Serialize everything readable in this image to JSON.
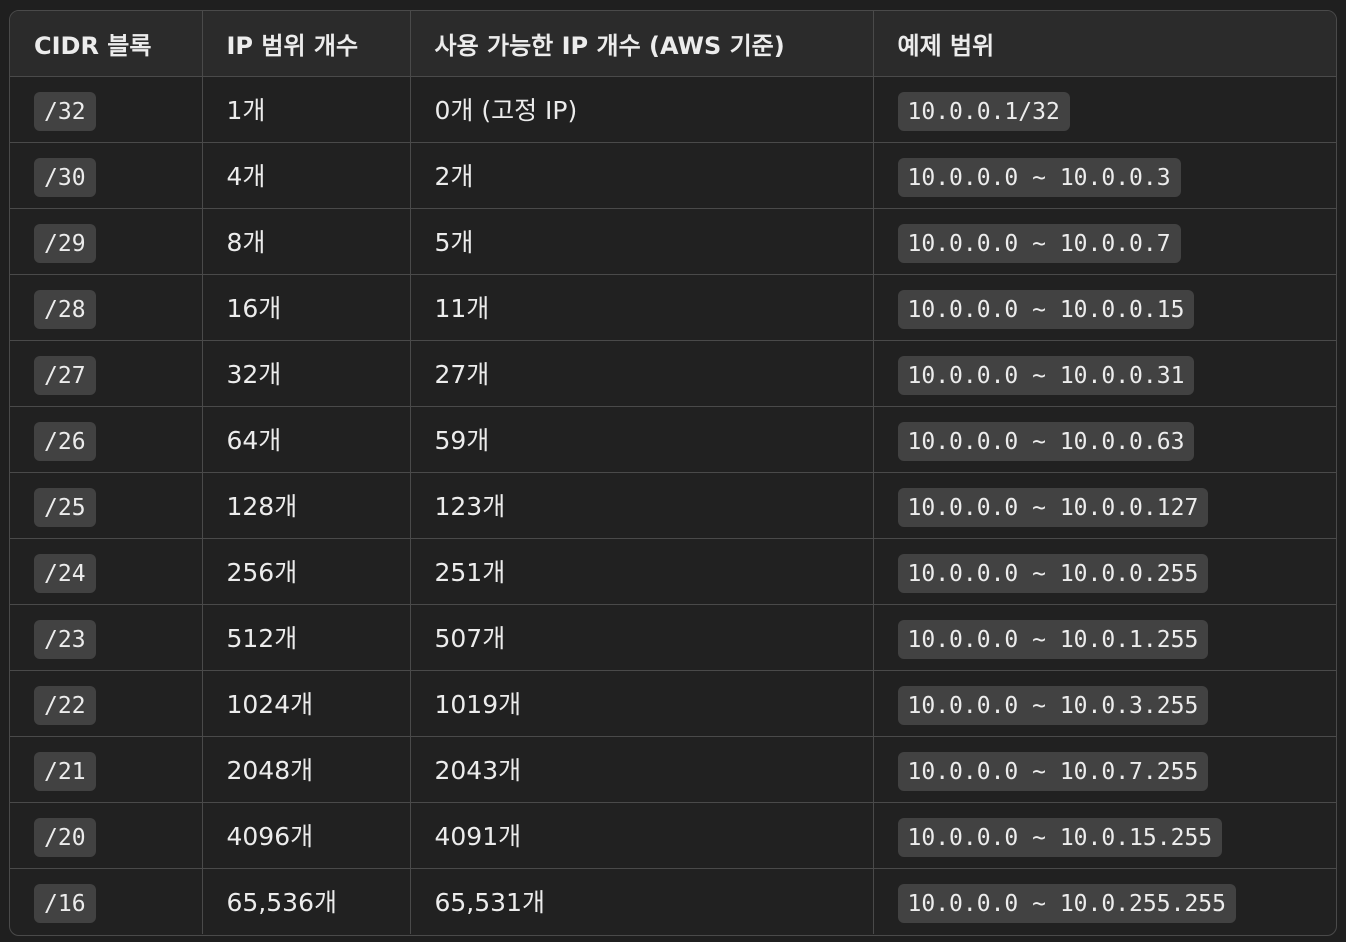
{
  "table": {
    "headers": [
      "CIDR 블록",
      "IP 범위 개수",
      "사용 가능한 IP 개수 (AWS 기준)",
      "예제 범위"
    ],
    "rows": [
      {
        "cidr": "/32",
        "range_count": "1개",
        "usable_count": "0개 (고정 IP)",
        "example": "10.0.0.1/32"
      },
      {
        "cidr": "/30",
        "range_count": "4개",
        "usable_count": "2개",
        "example": "10.0.0.0 ~ 10.0.0.3"
      },
      {
        "cidr": "/29",
        "range_count": "8개",
        "usable_count": "5개",
        "example": "10.0.0.0 ~ 10.0.0.7"
      },
      {
        "cidr": "/28",
        "range_count": "16개",
        "usable_count": "11개",
        "example": "10.0.0.0 ~ 10.0.0.15"
      },
      {
        "cidr": "/27",
        "range_count": "32개",
        "usable_count": "27개",
        "example": "10.0.0.0 ~ 10.0.0.31"
      },
      {
        "cidr": "/26",
        "range_count": "64개",
        "usable_count": "59개",
        "example": "10.0.0.0 ~ 10.0.0.63"
      },
      {
        "cidr": "/25",
        "range_count": "128개",
        "usable_count": "123개",
        "example": "10.0.0.0 ~ 10.0.0.127"
      },
      {
        "cidr": "/24",
        "range_count": "256개",
        "usable_count": "251개",
        "example": "10.0.0.0 ~ 10.0.0.255"
      },
      {
        "cidr": "/23",
        "range_count": "512개",
        "usable_count": "507개",
        "example": "10.0.0.0 ~ 10.0.1.255"
      },
      {
        "cidr": "/22",
        "range_count": "1024개",
        "usable_count": "1019개",
        "example": "10.0.0.0 ~ 10.0.3.255"
      },
      {
        "cidr": "/21",
        "range_count": "2048개",
        "usable_count": "2043개",
        "example": "10.0.0.0 ~ 10.0.7.255"
      },
      {
        "cidr": "/20",
        "range_count": "4096개",
        "usable_count": "4091개",
        "example": "10.0.0.0 ~ 10.0.15.255"
      },
      {
        "cidr": "/16",
        "range_count": "65,536개",
        "usable_count": "65,531개",
        "example": "10.0.0.0 ~ 10.0.255.255"
      }
    ]
  },
  "colors": {
    "background": "#1f1f1f",
    "header_background": "#2b2b2b",
    "border": "#4a4a4a",
    "code_background": "#424242",
    "text": "#ececec"
  }
}
